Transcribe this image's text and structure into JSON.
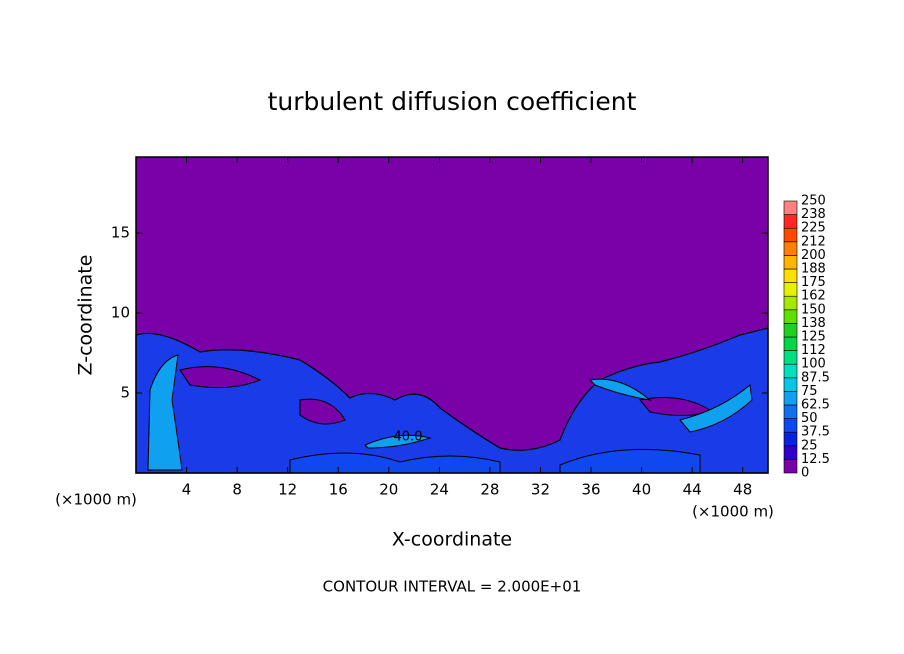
{
  "chart_data": {
    "type": "contour",
    "title": "turbulent diffusion coefficient",
    "xlabel": "X-coordinate",
    "ylabel": "Z-coordinate",
    "xunit": "(×1000 m)",
    "yunit": "(×1000 m)",
    "footer": "CONTOUR INTERVAL = 2.000E+01",
    "annotation": "40.0",
    "xlim": [
      0,
      50
    ],
    "ylim": [
      0,
      19.75
    ],
    "xticks": [
      4,
      8,
      12,
      16,
      20,
      24,
      28,
      32,
      36,
      40,
      44,
      48
    ],
    "yticks": [
      5,
      10,
      15
    ],
    "colorbar": {
      "levels": [
        0,
        12.5,
        25,
        37.5,
        50,
        62.5,
        75,
        87.5,
        100,
        112,
        125,
        138,
        150,
        162,
        175,
        188,
        200,
        212,
        225,
        238,
        250
      ],
      "colors": [
        "#7a00a8",
        "#3000c8",
        "#0a22e0",
        "#1048f0",
        "#1070f0",
        "#10a0f0",
        "#00c8e8",
        "#00e0c0",
        "#00e080",
        "#00d848",
        "#20d020",
        "#60e000",
        "#a8e800",
        "#e8f000",
        "#ffe000",
        "#ffb400",
        "#ff8000",
        "#ff4a00",
        "#ff2828",
        "#ff8080"
      ]
    }
  }
}
